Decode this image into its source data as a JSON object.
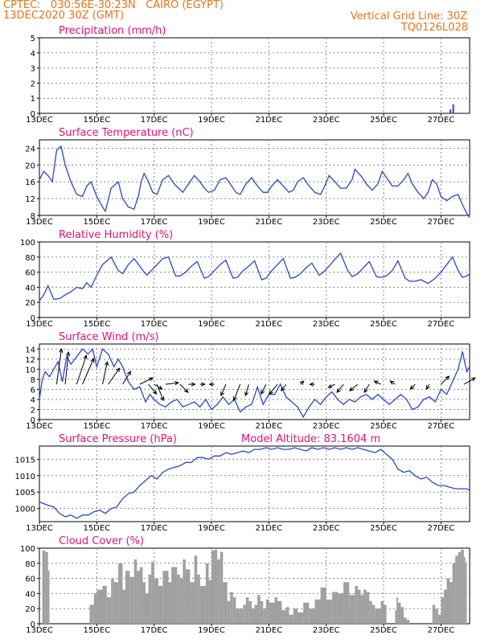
{
  "header": {
    "line1": "CPTEC:   030:56E-30:23N   CAIRO (EGYPT)",
    "line2": "13DEC2020 30Z (GMT)",
    "grid_note": "Vertical Grid Line: 30Z",
    "code": "TQ0126L028"
  },
  "model_altitude": "Model Altitude: 83.1604 m",
  "colors": {
    "line": "#2b46d6",
    "title": "#e0157a",
    "header": "#e8741a",
    "bars": "#a0a0a0",
    "arrow": "#000000"
  },
  "chart_data": [
    {
      "type": "bar",
      "title": "Precipitation (mm/h)",
      "ylim": [
        0,
        5
      ],
      "yticks": [
        0,
        1,
        2,
        3,
        4,
        5
      ],
      "xticks": [
        "13DEC",
        "15DEC",
        "17DEC",
        "19DEC",
        "21DEC",
        "23DEC",
        "25DEC",
        "27DEC"
      ],
      "x_range_days": [
        13,
        28
      ],
      "bars": [
        {
          "x": 27.3,
          "y": 0.25
        },
        {
          "x": 27.4,
          "y": 0.6
        }
      ]
    },
    {
      "type": "line",
      "title": "Surface Temperature (nC)",
      "ylim": [
        8,
        26
      ],
      "yticks": [
        8,
        12,
        16,
        20,
        24
      ],
      "xticks": [
        "13DEC",
        "15DEC",
        "17DEC",
        "19DEC",
        "21DEC",
        "23DEC",
        "25DEC",
        "27DEC"
      ],
      "x": [
        13.0,
        13.15,
        13.3,
        13.45,
        13.6,
        13.75,
        13.9,
        14.1,
        14.3,
        14.5,
        14.65,
        14.8,
        15.0,
        15.2,
        15.3,
        15.5,
        15.75,
        15.9,
        16.1,
        16.3,
        16.45,
        16.55,
        16.65,
        16.8,
        16.95,
        17.1,
        17.3,
        17.5,
        17.7,
        17.85,
        18.0,
        18.2,
        18.4,
        18.6,
        18.75,
        18.9,
        19.1,
        19.3,
        19.5,
        19.7,
        19.85,
        20.0,
        20.2,
        20.4,
        20.6,
        20.8,
        20.95,
        21.1,
        21.3,
        21.5,
        21.7,
        21.85,
        22.0,
        22.2,
        22.4,
        22.6,
        22.8,
        22.95,
        23.1,
        23.3,
        23.5,
        23.7,
        23.9,
        24.0,
        24.2,
        24.4,
        24.6,
        24.8,
        24.95,
        25.1,
        25.3,
        25.5,
        25.7,
        25.85,
        26.0,
        26.2,
        26.4,
        26.55,
        26.7,
        26.85,
        27.0,
        27.2,
        27.4,
        27.6,
        27.75,
        27.9,
        28.0
      ],
      "y": [
        16.5,
        18.5,
        17.5,
        16.0,
        23.5,
        24.5,
        20.0,
        16.0,
        13.0,
        12.5,
        15.0,
        16.0,
        12.5,
        10.0,
        9.0,
        14.5,
        16.0,
        12.0,
        10.0,
        9.5,
        12.5,
        16.0,
        18.0,
        16.0,
        13.5,
        13.0,
        16.5,
        17.5,
        15.5,
        14.5,
        13.5,
        15.5,
        17.5,
        16.0,
        14.5,
        13.5,
        14.0,
        16.5,
        17.0,
        15.0,
        13.5,
        13.0,
        15.5,
        17.0,
        15.0,
        13.5,
        13.5,
        15.0,
        16.5,
        15.0,
        13.5,
        14.0,
        16.0,
        17.0,
        15.0,
        13.5,
        13.0,
        15.0,
        17.5,
        16.0,
        14.5,
        14.5,
        16.5,
        19.0,
        17.5,
        15.5,
        14.0,
        15.5,
        18.5,
        17.0,
        15.0,
        15.0,
        16.5,
        18.0,
        15.5,
        13.5,
        12.0,
        13.5,
        16.5,
        15.5,
        12.5,
        11.5,
        12.5,
        13.0,
        10.5,
        8.5,
        7.5
      ]
    },
    {
      "type": "line",
      "title": "Relative Humidity (%)",
      "ylim": [
        0,
        100
      ],
      "yticks": [
        0,
        20,
        40,
        60,
        80,
        100
      ],
      "xticks": [
        "13DEC",
        "15DEC",
        "17DEC",
        "19DEC",
        "21DEC",
        "23DEC",
        "25DEC",
        "27DEC"
      ],
      "x": [
        13.0,
        13.15,
        13.3,
        13.5,
        13.7,
        13.9,
        14.1,
        14.3,
        14.5,
        14.65,
        14.8,
        15.0,
        15.2,
        15.5,
        15.75,
        15.9,
        16.1,
        16.3,
        16.5,
        16.65,
        16.75,
        16.95,
        17.15,
        17.3,
        17.5,
        17.75,
        17.9,
        18.1,
        18.3,
        18.5,
        18.75,
        18.9,
        19.1,
        19.3,
        19.5,
        19.75,
        19.9,
        20.1,
        20.3,
        20.5,
        20.75,
        20.9,
        21.1,
        21.3,
        21.5,
        21.75,
        21.9,
        22.1,
        22.3,
        22.5,
        22.75,
        22.9,
        23.1,
        23.3,
        23.5,
        23.75,
        23.9,
        24.1,
        24.3,
        24.5,
        24.75,
        24.9,
        25.1,
        25.3,
        25.5,
        25.75,
        25.9,
        26.1,
        26.3,
        26.55,
        26.8,
        27.0,
        27.2,
        27.4,
        27.6,
        27.75,
        27.9,
        28.0
      ],
      "y": [
        22.0,
        30.0,
        42.0,
        24.0,
        25.0,
        30.0,
        34.0,
        40.0,
        38.0,
        46.0,
        40.0,
        56.0,
        70.0,
        80.0,
        62.0,
        58.0,
        70.0,
        78.0,
        68.0,
        60.0,
        56.0,
        64.0,
        72.0,
        78.0,
        80.0,
        55.0,
        55.0,
        60.0,
        68.0,
        74.0,
        52.0,
        54.0,
        62.0,
        70.0,
        76.0,
        52.0,
        53.0,
        62.0,
        68.0,
        75.0,
        50.0,
        52.0,
        62.0,
        70.0,
        78.0,
        52.0,
        53.0,
        58.0,
        66.0,
        72.0,
        56.0,
        60.0,
        68.0,
        77.0,
        85.0,
        62.0,
        54.0,
        58.0,
        66.0,
        74.0,
        54.0,
        53.0,
        55.0,
        62.0,
        75.0,
        52.0,
        48.0,
        48.0,
        50.0,
        45.0,
        52.0,
        60.0,
        70.0,
        80.0,
        62.0,
        53.0,
        55.0,
        58.0
      ]
    },
    {
      "type": "line",
      "title": "Surface Wind (m/s)",
      "ylim": [
        0,
        15
      ],
      "yticks": [
        0,
        2,
        4,
        6,
        8,
        10,
        12,
        14
      ],
      "xticks": [
        "13DEC",
        "15DEC",
        "17DEC",
        "19DEC",
        "21DEC",
        "23DEC",
        "25DEC",
        "27DEC"
      ],
      "x": [
        13.0,
        13.1,
        13.2,
        13.35,
        13.5,
        13.65,
        13.8,
        13.95,
        14.1,
        14.3,
        14.5,
        14.7,
        14.85,
        15.0,
        15.2,
        15.4,
        15.6,
        15.75,
        15.9,
        16.1,
        16.3,
        16.5,
        16.7,
        16.85,
        17.0,
        17.2,
        17.4,
        17.6,
        17.8,
        18.0,
        18.2,
        18.4,
        18.6,
        18.8,
        19.0,
        19.2,
        19.4,
        19.6,
        19.8,
        20.0,
        20.2,
        20.4,
        20.6,
        20.8,
        21.0,
        21.2,
        21.4,
        21.6,
        21.8,
        22.0,
        22.2,
        22.4,
        22.6,
        22.8,
        23.0,
        23.2,
        23.4,
        23.6,
        23.8,
        24.0,
        24.2,
        24.4,
        24.6,
        24.8,
        25.0,
        25.2,
        25.4,
        25.6,
        25.8,
        26.0,
        26.2,
        26.4,
        26.6,
        26.8,
        27.0,
        27.2,
        27.4,
        27.6,
        27.75,
        27.9,
        28.0
      ],
      "y": [
        4.0,
        8.0,
        9.5,
        8.5,
        10.0,
        11.5,
        7.5,
        12.5,
        11.0,
        12.5,
        14.0,
        13.0,
        14.0,
        10.5,
        14.0,
        13.0,
        10.5,
        12.0,
        10.5,
        7.5,
        6.0,
        6.5,
        3.5,
        5.0,
        4.0,
        3.0,
        2.5,
        3.5,
        4.0,
        2.5,
        3.0,
        3.5,
        2.5,
        4.0,
        2.0,
        3.0,
        4.5,
        3.0,
        4.0,
        1.5,
        2.5,
        3.0,
        6.5,
        3.0,
        5.0,
        5.0,
        7.0,
        4.5,
        3.5,
        2.5,
        0.5,
        2.5,
        4.0,
        3.0,
        4.5,
        5.5,
        4.0,
        3.0,
        4.0,
        3.5,
        4.5,
        5.0,
        4.0,
        5.0,
        4.0,
        3.0,
        4.0,
        5.0,
        4.0,
        2.0,
        2.5,
        4.0,
        4.5,
        3.5,
        6.0,
        5.0,
        7.5,
        10.0,
        13.5,
        9.5,
        10.5
      ],
      "arrows": [
        {
          "x": 13.6,
          "u": 1.5,
          "v": 11.0
        },
        {
          "x": 13.9,
          "u": 1.0,
          "v": 10.0
        },
        {
          "x": 14.3,
          "u": 3.0,
          "v": 9.0
        },
        {
          "x": 14.5,
          "u": 3.5,
          "v": 8.0
        },
        {
          "x": 15.2,
          "u": 1.5,
          "v": 7.0
        },
        {
          "x": 15.4,
          "u": 3.5,
          "v": 5.0
        },
        {
          "x": 15.9,
          "u": 2.5,
          "v": 4.0
        },
        {
          "x": 16.5,
          "u": 4.0,
          "v": 2.0
        },
        {
          "x": 16.8,
          "u": 2.5,
          "v": -3.0
        },
        {
          "x": 17.0,
          "u": 2.5,
          "v": -1.5
        },
        {
          "x": 17.1,
          "u": 2.0,
          "v": -5.0
        },
        {
          "x": 17.4,
          "u": 4.0,
          "v": 0.5
        },
        {
          "x": 17.9,
          "u": 2.5,
          "v": -2.5
        },
        {
          "x": 18.2,
          "u": 2.0,
          "v": 0.0
        },
        {
          "x": 18.6,
          "u": 1.5,
          "v": 0.0
        },
        {
          "x": 19.1,
          "u": -1.5,
          "v": 0.0
        },
        {
          "x": 19.5,
          "u": -1.5,
          "v": -3.5
        },
        {
          "x": 20.0,
          "u": -2.0,
          "v": -5.0
        },
        {
          "x": 20.3,
          "u": -1.0,
          "v": -3.5
        },
        {
          "x": 20.9,
          "u": -1.5,
          "v": -3.0
        },
        {
          "x": 21.3,
          "u": -2.5,
          "v": -3.0
        },
        {
          "x": 21.6,
          "u": -1.5,
          "v": -2.0
        },
        {
          "x": 22.1,
          "u": 1.0,
          "v": 1.0
        },
        {
          "x": 22.6,
          "u": -1.5,
          "v": 0.0
        },
        {
          "x": 23.3,
          "u": -2.0,
          "v": -1.0
        },
        {
          "x": 23.6,
          "u": -2.0,
          "v": -2.5
        },
        {
          "x": 24.1,
          "u": -2.5,
          "v": -2.0
        },
        {
          "x": 24.5,
          "u": -1.5,
          "v": -2.5
        },
        {
          "x": 24.9,
          "u": -2.0,
          "v": 1.0
        },
        {
          "x": 25.4,
          "u": -1.5,
          "v": 1.0
        },
        {
          "x": 26.1,
          "u": -1.5,
          "v": -1.5
        },
        {
          "x": 26.6,
          "u": -1.0,
          "v": -1.5
        },
        {
          "x": 27.0,
          "u": 2.5,
          "v": 2.5
        },
        {
          "x": 27.8,
          "u": 3.5,
          "v": 2.0
        }
      ]
    },
    {
      "type": "line",
      "title": "Surface Pressure (hPa)",
      "ylim": [
        996,
        1019
      ],
      "yticks": [
        1000,
        1005,
        1010,
        1015
      ],
      "xticks": [
        "13DEC",
        "15DEC",
        "17DEC",
        "19DEC",
        "21DEC",
        "23DEC",
        "25DEC",
        "27DEC"
      ],
      "x": [
        13.0,
        13.3,
        13.5,
        13.7,
        13.9,
        14.1,
        14.3,
        14.5,
        14.7,
        14.9,
        15.1,
        15.3,
        15.5,
        15.7,
        15.9,
        16.1,
        16.3,
        16.5,
        16.7,
        16.9,
        17.1,
        17.3,
        17.5,
        17.7,
        17.9,
        18.1,
        18.3,
        18.5,
        18.7,
        18.9,
        19.1,
        19.3,
        19.5,
        19.7,
        19.9,
        20.1,
        20.3,
        20.5,
        20.7,
        20.9,
        21.1,
        21.3,
        21.5,
        21.7,
        21.9,
        22.1,
        22.3,
        22.5,
        22.7,
        22.9,
        23.1,
        23.3,
        23.5,
        23.7,
        23.9,
        24.1,
        24.3,
        24.5,
        24.7,
        24.9,
        25.1,
        25.3,
        25.5,
        25.7,
        25.9,
        26.1,
        26.3,
        26.5,
        26.7,
        26.9,
        27.1,
        27.3,
        27.5,
        27.7,
        27.9,
        28.0
      ],
      "y": [
        1002.0,
        1001.0,
        1000.5,
        998.5,
        997.5,
        998.0,
        997.0,
        998.0,
        998.0,
        999.0,
        999.5,
        998.5,
        1000.0,
        1000.5,
        1003.0,
        1004.5,
        1005.0,
        1007.0,
        1008.5,
        1010.0,
        1009.0,
        1011.0,
        1012.0,
        1012.5,
        1013.0,
        1014.0,
        1014.0,
        1015.5,
        1015.5,
        1015.0,
        1016.0,
        1016.0,
        1017.0,
        1016.5,
        1017.0,
        1017.5,
        1017.0,
        1018.0,
        1018.0,
        1018.5,
        1018.0,
        1018.5,
        1018.0,
        1018.0,
        1018.5,
        1018.0,
        1017.5,
        1018.5,
        1018.0,
        1018.5,
        1018.0,
        1018.5,
        1018.0,
        1018.5,
        1018.0,
        1018.5,
        1018.0,
        1017.5,
        1017.0,
        1018.0,
        1016.5,
        1015.0,
        1012.0,
        1011.0,
        1011.5,
        1010.0,
        1009.0,
        1009.5,
        1008.0,
        1007.0,
        1007.0,
        1006.5,
        1006.0,
        1006.0,
        1006.0,
        1005.5
      ]
    },
    {
      "type": "area",
      "title": "Cloud Cover (%)",
      "ylim": [
        0,
        100
      ],
      "yticks": [
        0,
        20,
        40,
        60,
        80,
        100
      ],
      "xticks": [
        "13DEC",
        "15DEC",
        "17DEC",
        "19DEC",
        "21DEC",
        "23DEC",
        "25DEC",
        "27DEC"
      ],
      "x": [
        13.0,
        13.05,
        13.1,
        13.2,
        13.3,
        13.35,
        13.4,
        14.7,
        14.75,
        14.9,
        15.0,
        15.2,
        15.35,
        15.5,
        15.6,
        15.75,
        15.9,
        16.0,
        16.15,
        16.3,
        16.4,
        16.5,
        16.6,
        16.7,
        16.8,
        16.9,
        17.0,
        17.15,
        17.3,
        17.5,
        17.6,
        17.8,
        17.9,
        18.0,
        18.1,
        18.25,
        18.4,
        18.5,
        18.6,
        18.8,
        18.9,
        19.0,
        19.1,
        19.2,
        19.3,
        19.4,
        19.55,
        19.65,
        19.75,
        19.85,
        20.0,
        20.1,
        20.2,
        20.3,
        20.4,
        20.5,
        20.6,
        20.7,
        20.8,
        20.9,
        21.0,
        21.2,
        21.3,
        21.45,
        21.6,
        21.7,
        21.85,
        22.0,
        22.2,
        22.4,
        22.6,
        22.8,
        23.0,
        23.2,
        23.4,
        23.6,
        23.8,
        24.0,
        24.1,
        24.2,
        24.3,
        24.4,
        24.5,
        24.6,
        24.7,
        24.9,
        25.0,
        25.1,
        25.25,
        25.4,
        25.45,
        25.5,
        25.6,
        25.7,
        25.8,
        25.9,
        26.0,
        26.1,
        26.5,
        26.6,
        26.7,
        26.8,
        26.9,
        27.0,
        27.1,
        27.2,
        27.3,
        27.4,
        27.5,
        27.6,
        27.7,
        27.8,
        27.85,
        27.9,
        28.0
      ],
      "y": [
        0,
        0,
        97,
        95,
        70,
        0,
        0,
        0,
        25,
        40,
        45,
        50,
        35,
        60,
        55,
        80,
        45,
        70,
        62,
        85,
        70,
        75,
        55,
        40,
        65,
        82,
        60,
        50,
        70,
        55,
        75,
        65,
        60,
        85,
        72,
        55,
        90,
        65,
        50,
        80,
        58,
        97,
        98,
        85,
        95,
        55,
        30,
        42,
        35,
        20,
        20,
        25,
        35,
        30,
        20,
        25,
        38,
        30,
        20,
        32,
        28,
        35,
        30,
        18,
        22,
        12,
        20,
        15,
        28,
        20,
        32,
        48,
        32,
        42,
        40,
        55,
        38,
        50,
        45,
        38,
        45,
        42,
        30,
        25,
        20,
        30,
        25,
        0,
        0,
        18,
        35,
        28,
        22,
        8,
        5,
        0,
        0,
        0,
        0,
        0,
        25,
        20,
        12,
        35,
        45,
        60,
        55,
        80,
        90,
        95,
        98,
        88,
        80,
        0,
        0
      ]
    }
  ],
  "panels_layout_note": "",
  "panel_titles": [
    "Precipitation (mm/h)",
    "Surface Temperature (nC)",
    "Relative Humidity (%)",
    "Surface Wind (m/s)",
    "Surface Pressure (hPa)",
    "Cloud Cover (%)"
  ]
}
